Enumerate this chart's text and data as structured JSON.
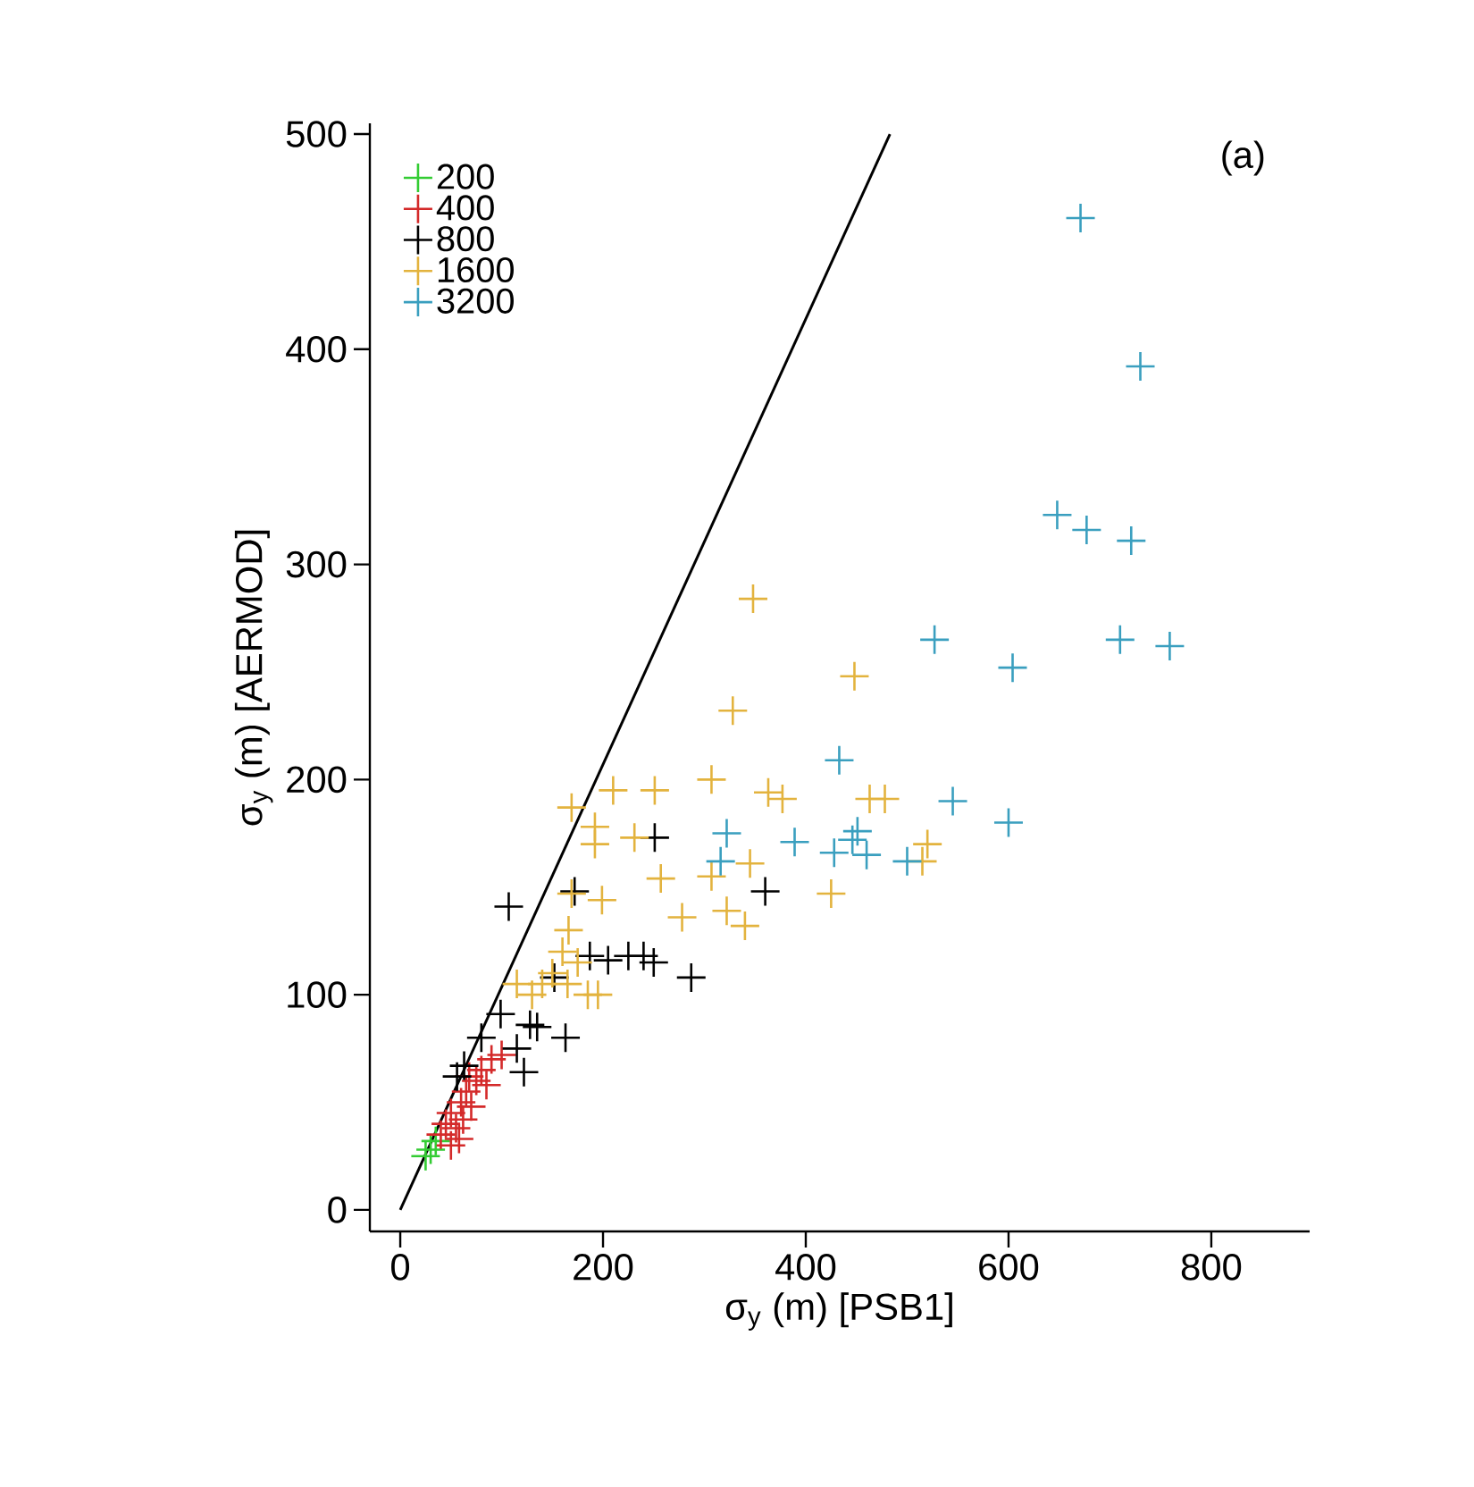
{
  "chart_data": {
    "type": "scatter",
    "xlabel": "σ$_{y}$ (m) [PSB1]",
    "ylabel": "σ$_{y}$ (m) [AERMOD]",
    "annotations": [
      "(a)"
    ],
    "xlim": [
      -30,
      897
    ],
    "ylim": [
      -10,
      505
    ],
    "xticks": [
      0,
      200,
      400,
      600,
      800
    ],
    "yticks": [
      0,
      100,
      200,
      300,
      400,
      500
    ],
    "grid": false,
    "legend": "top left",
    "marker": "cross",
    "series": [
      {
        "name": "200",
        "color": "#33cc33",
        "x": [
          25,
          30,
          35
        ],
        "values": [
          25,
          28,
          32
        ]
      },
      {
        "name": "400",
        "color": "#d42a2a",
        "x": [
          40,
          45,
          50,
          55,
          60,
          62,
          65,
          70,
          75,
          80,
          85,
          90,
          100,
          50,
          58,
          68
        ],
        "values": [
          35,
          40,
          45,
          38,
          50,
          42,
          55,
          48,
          60,
          65,
          58,
          70,
          72,
          30,
          33,
          62
        ]
      },
      {
        "name": "800",
        "color": "#000000",
        "x": [
          107,
          172,
          251,
          360,
          287,
          187,
          205,
          225,
          240,
          250,
          152,
          128,
          163,
          122,
          99,
          63,
          56,
          80,
          115,
          135
        ],
        "values": [
          141,
          148,
          173,
          148,
          108,
          118,
          116,
          118,
          118,
          115,
          108,
          86,
          80,
          64,
          91,
          67,
          62,
          80,
          75,
          85
        ]
      },
      {
        "name": "1600",
        "color": "#e3b33e",
        "x": [
          348,
          448,
          328,
          307,
          251,
          210,
          169,
          363,
          377,
          463,
          478,
          192,
          231,
          192,
          257,
          307,
          345,
          425,
          278,
          322,
          340,
          199,
          169,
          166,
          150,
          165,
          175,
          185,
          160,
          140,
          195,
          130,
          115,
          520,
          515
        ],
        "values": [
          284,
          248,
          232,
          200,
          195,
          195,
          187,
          194,
          191,
          191,
          191,
          178,
          173,
          170,
          154,
          155,
          161,
          147,
          136,
          139,
          132,
          144,
          147,
          130,
          110,
          105,
          115,
          100,
          120,
          105,
          100,
          100,
          105,
          170,
          162
        ]
      },
      {
        "name": "3200",
        "color": "#3a9fbf",
        "x": [
          671,
          730,
          648,
          677,
          721,
          527,
          604,
          710,
          759,
          433,
          322,
          316,
          389,
          428,
          451,
          446,
          460,
          545,
          600,
          500
        ],
        "values": [
          461,
          392,
          323,
          316,
          311,
          265,
          252,
          265,
          262,
          209,
          175,
          162,
          171,
          166,
          176,
          172,
          165,
          190,
          180,
          162
        ]
      },
      {
        "type": "line",
        "color": "#000000",
        "line_style": "solid",
        "marker": "none",
        "x": [
          0,
          483
        ],
        "values": [
          0,
          500
        ]
      }
    ]
  }
}
